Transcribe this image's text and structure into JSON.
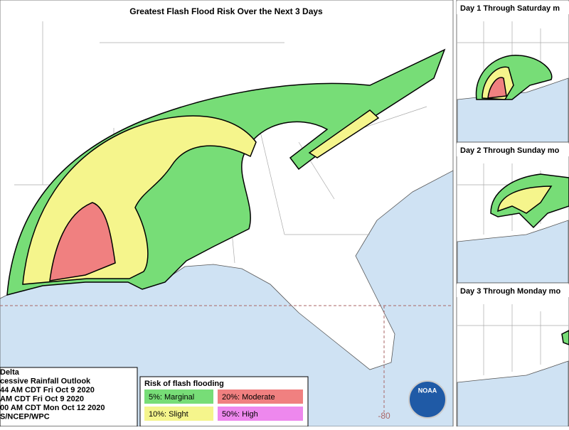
{
  "title": "Greatest Flash Flood Risk Over the Next 3 Days",
  "panels": [
    {
      "title": "Day 1 Through Saturday m"
    },
    {
      "title": "Day 2 Through Sunday mo"
    },
    {
      "title": "Day 3 Through Monday mo"
    }
  ],
  "info": {
    "lines": [
      "Delta",
      "cessive Rainfall Outlook",
      "44 AM CDT Fri Oct 9 2020",
      "AM CDT Fri Oct 9 2020",
      "00 AM CDT Mon Oct 12 2020",
      "S/NCEP/WPC"
    ]
  },
  "legend": {
    "title": "Risk of flash flooding",
    "items": [
      {
        "label": "5%: Marginal",
        "color": "#77dd77"
      },
      {
        "label": "20%: Moderate",
        "color": "#f08080"
      },
      {
        "label": "10%: Slight",
        "color": "#f5f58c"
      },
      {
        "label": "50%: High",
        "color": "#ee88ee"
      }
    ]
  },
  "map": {
    "longitude_label": "-80",
    "logo": "NOAA"
  }
}
